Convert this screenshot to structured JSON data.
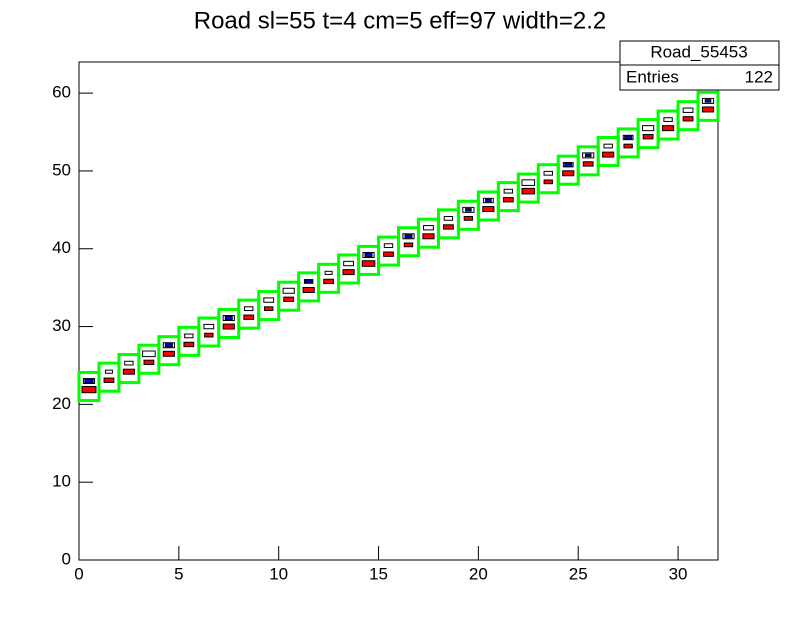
{
  "chart_data": {
    "type": "box2d",
    "title": "Road sl=55 t=4 cm=5 eff=97 width=2.2",
    "stats": {
      "name": "Road_55453",
      "label": "Entries",
      "value": 122
    },
    "xlim": [
      0,
      32
    ],
    "ylim": [
      0,
      64
    ],
    "xticks": [
      0,
      5,
      10,
      15,
      20,
      25,
      30
    ],
    "yticks": [
      0,
      10,
      20,
      30,
      40,
      50,
      60
    ],
    "road": {
      "color": "#00ff00",
      "height": 3.6,
      "x": [
        0,
        1,
        2,
        3,
        4,
        5,
        6,
        7,
        8,
        9,
        10,
        11,
        12,
        13,
        14,
        15,
        16,
        17,
        18,
        19,
        20,
        21,
        22,
        23,
        24,
        25,
        26,
        27,
        28,
        29,
        30,
        31
      ],
      "y": [
        20.5,
        21.7,
        22.8,
        24.0,
        25.1,
        26.3,
        27.5,
        28.6,
        29.8,
        30.9,
        32.1,
        33.3,
        34.4,
        35.6,
        36.7,
        37.9,
        39.1,
        40.2,
        41.4,
        42.5,
        43.7,
        44.9,
        46.0,
        47.2,
        48.3,
        49.5,
        50.7,
        51.8,
        53.0,
        54.1,
        55.3,
        56.5
      ]
    },
    "series": [
      {
        "color": "#ffffff",
        "x": [
          0.5,
          1.5,
          2.5,
          3.5,
          4.5,
          5.5,
          6.5,
          7.5,
          8.5,
          9.5,
          10.5,
          11.5,
          12.5,
          13.5,
          14.5,
          15.5,
          16.5,
          17.5,
          18.5,
          19.5,
          20.5,
          21.5,
          22.5,
          23.5,
          24.5,
          25.5,
          26.5,
          27.5,
          28.5,
          29.5,
          30.5,
          31.5
        ],
        "y": [
          23.0,
          24.2,
          25.3,
          26.5,
          27.6,
          28.8,
          30.0,
          31.1,
          32.3,
          33.4,
          34.6,
          35.8,
          36.9,
          38.1,
          39.2,
          40.4,
          41.6,
          42.7,
          43.9,
          45.0,
          46.2,
          47.4,
          48.5,
          49.7,
          50.8,
          52.0,
          53.2,
          54.3,
          55.5,
          56.6,
          57.8,
          59.0
        ],
        "values": [
          0.8,
          0.5,
          0.6,
          0.9,
          0.8,
          0.6,
          0.7,
          0.8,
          0.6,
          0.7,
          0.8,
          0.6,
          0.5,
          0.7,
          0.8,
          0.6,
          0.8,
          0.7,
          0.6,
          0.8,
          0.7,
          0.6,
          0.9,
          0.6,
          0.7,
          0.8,
          0.6,
          0.7,
          0.8,
          0.6,
          0.7,
          0.8
        ]
      },
      {
        "color": "#ff0000",
        "x": [
          0.5,
          1.5,
          2.5,
          3.5,
          4.5,
          5.5,
          6.5,
          7.5,
          8.5,
          9.5,
          10.5,
          11.5,
          12.5,
          13.5,
          14.5,
          15.5,
          16.5,
          17.5,
          18.5,
          19.5,
          20.5,
          21.5,
          22.5,
          23.5,
          24.5,
          25.5,
          26.5,
          27.5,
          28.5,
          29.5,
          30.5,
          31.5
        ],
        "y": [
          21.9,
          23.1,
          24.2,
          25.4,
          26.5,
          27.7,
          28.9,
          30.0,
          31.2,
          32.3,
          33.5,
          34.7,
          35.8,
          37.0,
          38.1,
          39.3,
          40.5,
          41.6,
          42.8,
          43.9,
          45.1,
          46.3,
          47.4,
          48.6,
          49.7,
          50.9,
          52.1,
          53.2,
          54.4,
          55.5,
          56.7,
          57.9
        ],
        "values": [
          1.0,
          0.7,
          0.8,
          0.7,
          0.8,
          0.7,
          0.6,
          0.8,
          0.7,
          0.6,
          0.7,
          0.8,
          0.7,
          0.8,
          0.9,
          0.7,
          0.6,
          0.8,
          0.7,
          0.6,
          0.8,
          0.7,
          0.9,
          0.6,
          0.8,
          0.7,
          0.8,
          0.6,
          0.7,
          0.8,
          0.7,
          0.8
        ]
      },
      {
        "color": "#0000ff",
        "x": [
          0.5,
          4.5,
          7.5,
          11.5,
          14.5,
          16.5,
          19.5,
          20.5,
          24.5,
          25.5,
          27.5,
          31.5
        ],
        "y": [
          23.0,
          27.6,
          31.1,
          35.8,
          39.2,
          41.6,
          45.0,
          46.2,
          50.8,
          52.0,
          54.3,
          59.0
        ],
        "values": [
          0.6,
          0.5,
          0.5,
          0.5,
          0.5,
          0.5,
          0.4,
          0.4,
          0.5,
          0.4,
          0.5,
          0.4
        ]
      }
    ]
  }
}
